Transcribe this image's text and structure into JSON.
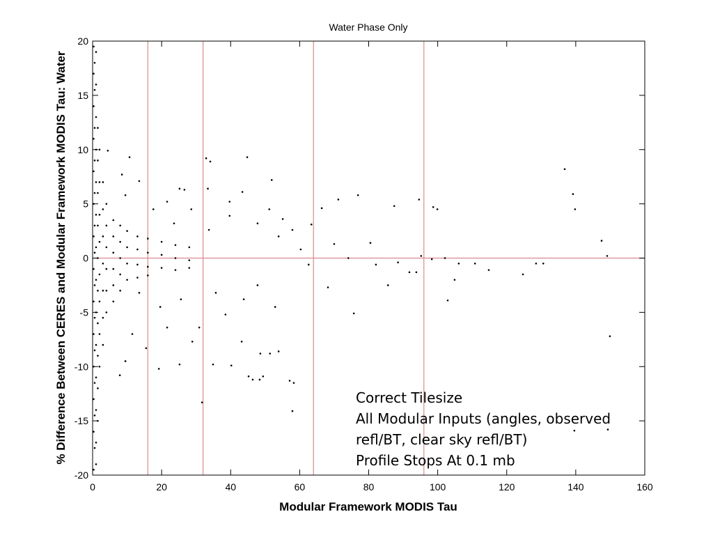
{
  "chart_data": {
    "type": "scatter",
    "title": "Water Phase Only",
    "xlabel": "Modular Framework MODIS Tau",
    "ylabel": "% Difference Between CERES and Modular Framework MODIS Tau: Water",
    "annotation": [
      "Correct Tilesize",
      "All Modular Inputs (angles, observed",
      "refl/BT, clear sky refl/BT)",
      "Profile Stops At 0.1 mb"
    ],
    "color": "#000000",
    "ref_color": "#d9898e",
    "vlines": [
      16,
      32,
      64,
      96
    ],
    "hlines": [
      0
    ],
    "xlim": [
      0,
      160
    ],
    "ylim": [
      -20,
      20
    ],
    "xticks": [
      0,
      20,
      40,
      60,
      80,
      100,
      120,
      140,
      160
    ],
    "yticks": [
      -20,
      -15,
      -10,
      -5,
      0,
      5,
      10,
      15,
      20
    ],
    "x": [
      136.8,
      139.2,
      139.8,
      147.5,
      149.1,
      149.9,
      149.3,
      139.6,
      32.9,
      34.1,
      44.8,
      51.9,
      43.4,
      33.4,
      25.2,
      26.6,
      4.4,
      10.7,
      71.2,
      76.9,
      87.4,
      94.6,
      98.7,
      99.9,
      66.4,
      63.4,
      55.1,
      80.5,
      102.1,
      102.9,
      104.9,
      114.8,
      130.6,
      128.5,
      124.7,
      110.8,
      106.1,
      93.8,
      91.8,
      88.5,
      85.6,
      75.7,
      68.2,
      62.6,
      60.3,
      57.9,
      57.1,
      58.3,
      31.7,
      51.4,
      53.9,
      48.6,
      45.2,
      46.4,
      48.4,
      49.4,
      40.2,
      34.9,
      43.2,
      25.2,
      19.2,
      9.5,
      7.9,
      38.5,
      30.9,
      21.6,
      28.9,
      15.5,
      11.5,
      19.6,
      13.5,
      25.6,
      35.7,
      43.8,
      47.8,
      52.9,
      33.7,
      39.7,
      47.8,
      57.9,
      23.6,
      17.6,
      13.5,
      8.5,
      9.5,
      21.6,
      28.6,
      39.7,
      51.2,
      53.9,
      70.0,
      74.1,
      82.1,
      95.2,
      98.3,
      0.3,
      0.3,
      0.3,
      0.3,
      0.3,
      0.3,
      0.3,
      0.3,
      0.3,
      0.3,
      0.3,
      0.3,
      0.3,
      0.3,
      0.6,
      0.6,
      0.6,
      0.6,
      0.6,
      0.6,
      0.6,
      0.6,
      0.6,
      0.6,
      0.6,
      0.6,
      0.6,
      1.0,
      1.0,
      1.0,
      1.0,
      1.0,
      1.0,
      1.0,
      1.0,
      1.0,
      1.0,
      1.0,
      1.0,
      1.0,
      1.0,
      1.5,
      1.5,
      1.5,
      1.5,
      1.5,
      1.5,
      1.5,
      1.5,
      1.5,
      1.5,
      2,
      2,
      2,
      2,
      2,
      2,
      2,
      2,
      3,
      3,
      3,
      3,
      3,
      3,
      3,
      4,
      4,
      4,
      4,
      4,
      4,
      6,
      6,
      6,
      6,
      6,
      6,
      8,
      8,
      8,
      8,
      8,
      10,
      10,
      10,
      10,
      13,
      13,
      13,
      13,
      16,
      16,
      16,
      16,
      20,
      20,
      20,
      24,
      24,
      24,
      28,
      28,
      28
    ],
    "y": [
      8.2,
      5.9,
      4.5,
      1.6,
      0.2,
      -7.2,
      -15.8,
      -15.9,
      9.2,
      8.9,
      9.3,
      7.2,
      6.1,
      6.4,
      6.4,
      6.3,
      9.9,
      9.3,
      5.4,
      5.8,
      4.8,
      5.4,
      4.7,
      4.5,
      4.6,
      3.1,
      3.6,
      1.4,
      0,
      -3.9,
      -2.0,
      -1.1,
      -0.5,
      -0.5,
      -1.5,
      -0.5,
      -0.5,
      -1.3,
      -1.3,
      -0.4,
      -2.5,
      -5.1,
      -2.7,
      -0.6,
      0.8,
      -14.1,
      -11.3,
      -11.5,
      -13.3,
      -8.8,
      -8.6,
      -8.8,
      -10.9,
      -11.2,
      -11.2,
      -10.9,
      -9.9,
      -9.8,
      -7.7,
      -9.8,
      -10.2,
      -9.5,
      -10.8,
      -5.2,
      -6.4,
      -6.4,
      -7.7,
      -8.3,
      -7.0,
      -4.5,
      -3.2,
      -3.8,
      -3.2,
      -3.8,
      -2.5,
      -4.5,
      2.6,
      3.9,
      3.2,
      2.6,
      3.2,
      4.5,
      7.1,
      7.7,
      5.8,
      5.2,
      4.5,
      5.2,
      4.5,
      2.0,
      1.3,
      0,
      -0.6,
      0.2,
      -0.1,
      19.5,
      17,
      14,
      11,
      8,
      5,
      2,
      -1,
      -4,
      -7,
      -10,
      -13,
      -16,
      -19.5,
      18,
      15.5,
      12,
      9,
      6,
      3,
      0.5,
      -2.5,
      -5.5,
      -8.5,
      -11.5,
      -14.5,
      -17.5,
      19,
      16,
      13,
      10,
      7,
      4,
      1,
      -2,
      -5,
      -8,
      -11,
      -14,
      -17,
      -19,
      12,
      9,
      6,
      3,
      0,
      -3,
      -6,
      -9,
      -12,
      -15,
      10,
      7,
      4,
      1.5,
      -1.5,
      -4,
      -7,
      -10,
      7,
      4.5,
      2,
      -0.5,
      -3,
      -5.5,
      -8,
      5,
      3,
      1,
      -1,
      -3,
      -5,
      3.5,
      2,
      0.5,
      -1,
      -2.5,
      -4,
      3,
      1.5,
      0,
      -1.5,
      -3,
      2.5,
      1,
      -0.5,
      -2,
      2,
      0.8,
      -0.6,
      -1.8,
      1.8,
      0.5,
      -0.8,
      -1.6,
      1.5,
      0.3,
      -0.9,
      1.2,
      0,
      -1.1,
      1,
      -0.2,
      -0.9
    ]
  }
}
